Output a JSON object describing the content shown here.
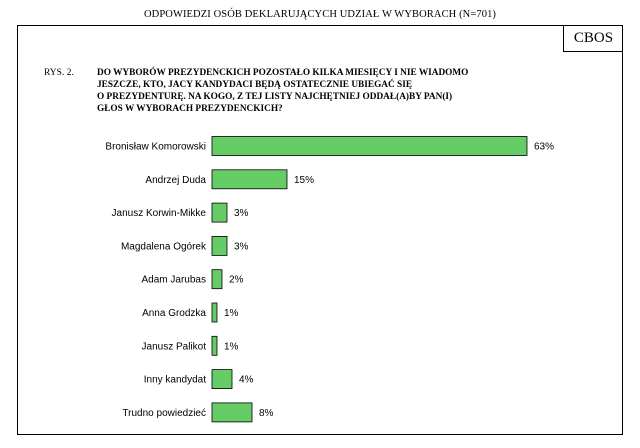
{
  "header": {
    "title": "ODPOWIEDZI OSÓB DEKLARUJĄCYCH UDZIAŁ W WYBORACH (N=701)"
  },
  "logo": {
    "text": "CBOS"
  },
  "figure": {
    "label": "RYS. 2.",
    "question_lines": [
      "DO WYBORÓW PREZYDENCKICH POZOSTAŁO KILKA MIESIĘCY I NIE WIADOMO",
      "JESZCZE, KTO, JACY KANDYDACI BĘDĄ OSTATECZNIE UBIEGAĆ SIĘ",
      "O PREZYDENTURĘ. NA KOGO, Z TEJ LISTY NAJCHĘTNIEJ ODDAŁ(A)BY PAN(I)",
      "GŁOS W WYBORACH PREZYDENCKICH?"
    ]
  },
  "chart_data": {
    "type": "bar",
    "orientation": "horizontal",
    "title": "",
    "categories": [
      "Bronisław Komorowski",
      "Andrzej Duda",
      "Janusz Korwin-Mikke",
      "Magdalena Ogórek",
      "Adam Jarubas",
      "Anna Grodzka",
      "Janusz Palikot",
      "Inny kandydat",
      "Trudno powiedzieć"
    ],
    "values": [
      63,
      15,
      3,
      3,
      2,
      1,
      1,
      4,
      8
    ],
    "value_labels": [
      "63%",
      "15%",
      "3%",
      "3%",
      "2%",
      "1%",
      "1%",
      "4%",
      "8%"
    ],
    "unit": "%",
    "xlim": [
      0,
      63
    ],
    "bar_color": "#66cc66",
    "bar_border_color": "#000000",
    "grid": false,
    "legend": "none"
  }
}
